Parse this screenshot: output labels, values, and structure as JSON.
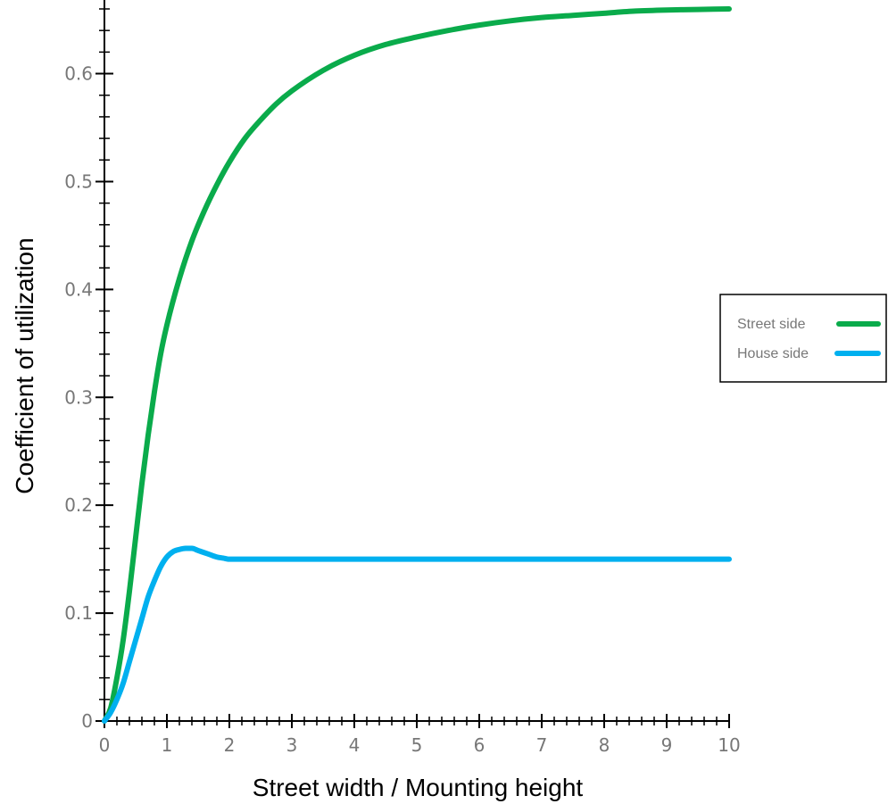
{
  "chart_data": {
    "type": "line",
    "xlabel": "Street width / Mounting height",
    "ylabel": "Coefficient of utilization",
    "xlim": [
      0,
      10
    ],
    "ylim": [
      0,
      0.66
    ],
    "x_ticks": [
      0,
      1,
      2,
      3,
      4,
      5,
      6,
      7,
      8,
      9,
      10
    ],
    "x_tick_labels": [
      "0",
      "1",
      "2",
      "3",
      "4",
      "5",
      "6",
      "7",
      "8",
      "9",
      "10"
    ],
    "y_ticks": [
      0,
      0.1,
      0.2,
      0.3,
      0.4,
      0.5,
      0.6
    ],
    "y_tick_labels": [
      "0",
      "0.1",
      "0.2",
      "0.3",
      "0.4",
      "0.5",
      "0.6"
    ],
    "grid": false,
    "legend_position": "right",
    "series": [
      {
        "name": "Street side",
        "color": "#0aab4b",
        "x": [
          0,
          0.1,
          0.2,
          0.3,
          0.4,
          0.5,
          0.6,
          0.7,
          0.8,
          0.9,
          1.0,
          1.2,
          1.4,
          1.6,
          1.8,
          2.0,
          2.25,
          2.5,
          2.75,
          3.0,
          3.5,
          4.0,
          4.5,
          5.0,
          5.5,
          6.0,
          6.5,
          7.0,
          7.5,
          8.0,
          8.5,
          9.0,
          9.5,
          10.0
        ],
        "values": [
          0.0,
          0.012,
          0.04,
          0.075,
          0.12,
          0.17,
          0.22,
          0.265,
          0.305,
          0.34,
          0.367,
          0.41,
          0.445,
          0.473,
          0.497,
          0.518,
          0.54,
          0.557,
          0.572,
          0.584,
          0.603,
          0.617,
          0.627,
          0.634,
          0.64,
          0.645,
          0.649,
          0.652,
          0.654,
          0.656,
          0.658,
          0.659,
          0.6595,
          0.66
        ]
      },
      {
        "name": "House side",
        "color": "#00b0ef",
        "x": [
          0,
          0.1,
          0.2,
          0.3,
          0.4,
          0.5,
          0.6,
          0.7,
          0.8,
          0.9,
          1.0,
          1.1,
          1.2,
          1.3,
          1.4,
          1.5,
          1.6,
          1.7,
          1.8,
          1.9,
          2.0,
          2.5,
          3.0,
          4.0,
          5.0,
          6.0,
          7.0,
          8.0,
          9.0,
          10.0
        ],
        "values": [
          0.0,
          0.008,
          0.02,
          0.035,
          0.055,
          0.075,
          0.095,
          0.115,
          0.13,
          0.143,
          0.152,
          0.157,
          0.159,
          0.16,
          0.16,
          0.158,
          0.156,
          0.154,
          0.152,
          0.151,
          0.15,
          0.15,
          0.15,
          0.15,
          0.15,
          0.15,
          0.15,
          0.15,
          0.15,
          0.15
        ]
      }
    ]
  }
}
